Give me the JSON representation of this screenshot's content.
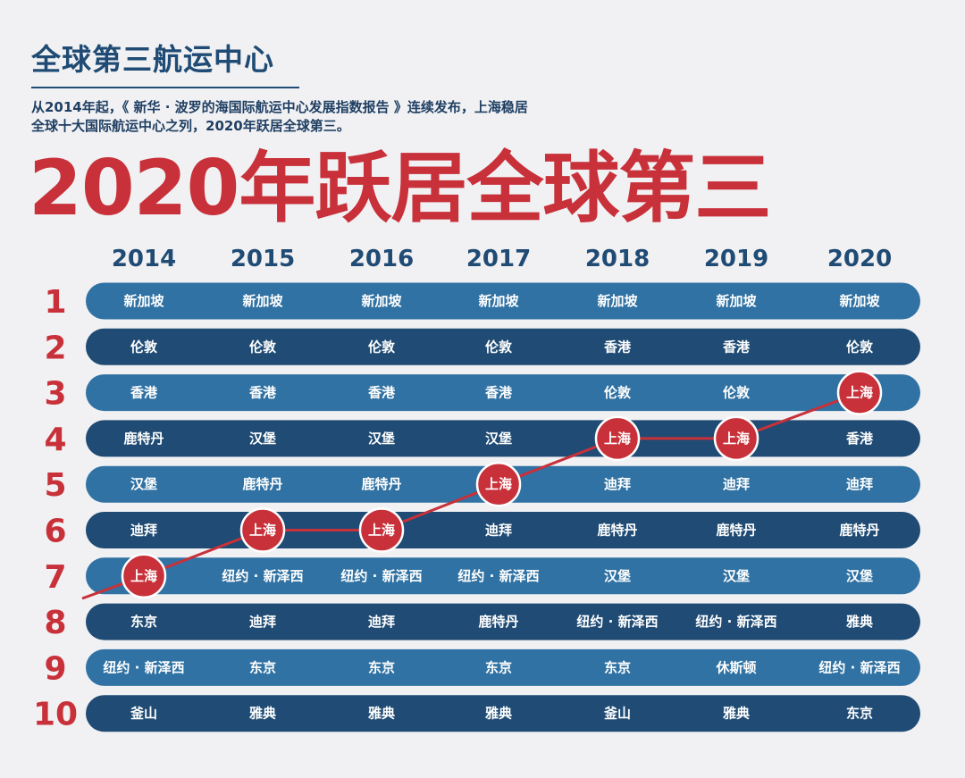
{
  "header": {
    "title": "全球第三航运中心",
    "description_line1": "从2014年起，《 新华 · 波罗的海国际航运中心发展指数报告 》连续发布，上海稳居",
    "description_line2": "全球十大国际航运中心之列，2020年跃居全球第三。",
    "headline": "2020年跃居全球第三"
  },
  "colors": {
    "background": "#f1f1f3",
    "row_light": "#3072a3",
    "row_dark": "#1f4b74",
    "accent_red": "#c8313a",
    "text_dark": "#1f4b74"
  },
  "chart_data": {
    "type": "table",
    "highlight": "上海",
    "columns": [
      "2014",
      "2015",
      "2016",
      "2017",
      "2018",
      "2019",
      "2020"
    ],
    "ranks": [
      "1",
      "2",
      "3",
      "4",
      "5",
      "6",
      "7",
      "8",
      "9",
      "10"
    ],
    "rankings": [
      [
        "新加坡",
        "伦敦",
        "香港",
        "鹿特丹",
        "汉堡",
        "迪拜",
        "上海",
        "东京",
        "纽约 · 新泽西",
        "釜山"
      ],
      [
        "新加坡",
        "伦敦",
        "香港",
        "汉堡",
        "鹿特丹",
        "上海",
        "纽约 · 新泽西",
        "迪拜",
        "东京",
        "雅典"
      ],
      [
        "新加坡",
        "伦敦",
        "香港",
        "汉堡",
        "鹿特丹",
        "上海",
        "纽约 · 新泽西",
        "迪拜",
        "东京",
        "雅典"
      ],
      [
        "新加坡",
        "伦敦",
        "香港",
        "汉堡",
        "上海",
        "迪拜",
        "纽约 · 新泽西",
        "鹿特丹",
        "东京",
        "雅典"
      ],
      [
        "新加坡",
        "香港",
        "伦敦",
        "上海",
        "迪拜",
        "鹿特丹",
        "汉堡",
        "纽约 · 新泽西",
        "东京",
        "釜山"
      ],
      [
        "新加坡",
        "香港",
        "伦敦",
        "上海",
        "迪拜",
        "鹿特丹",
        "汉堡",
        "纽约 · 新泽西",
        "休斯顿",
        "雅典"
      ],
      [
        "新加坡",
        "伦敦",
        "上海",
        "香港",
        "迪拜",
        "鹿特丹",
        "汉堡",
        "雅典",
        "纽约 · 新泽西",
        "东京"
      ]
    ],
    "shanghai_rank": [
      7,
      6,
      6,
      5,
      4,
      4,
      3
    ]
  }
}
